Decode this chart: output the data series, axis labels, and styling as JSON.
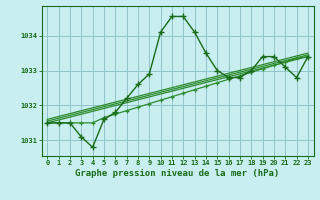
{
  "title": "Graphe pression niveau de la mer (hPa)",
  "background_color": "#c8eef0",
  "grid_color": "#90c4c8",
  "line_color": "#1a6b1a",
  "line_color2": "#2d8b2d",
  "xlim": [
    -0.5,
    23.5
  ],
  "ylim": [
    1030.55,
    1034.85
  ],
  "yticks": [
    1031,
    1032,
    1033,
    1034
  ],
  "xticks": [
    0,
    1,
    2,
    3,
    4,
    5,
    6,
    7,
    8,
    9,
    10,
    11,
    12,
    13,
    14,
    15,
    16,
    17,
    18,
    19,
    20,
    21,
    22,
    23
  ],
  "series1_x": [
    0,
    1,
    2,
    3,
    4,
    5,
    6,
    7,
    8,
    9,
    10,
    11,
    12,
    13,
    14,
    15,
    16,
    17,
    18,
    19,
    20,
    21,
    22,
    23
  ],
  "series1_y": [
    1031.5,
    1031.5,
    1031.5,
    1031.1,
    1030.8,
    1031.6,
    1031.8,
    1032.2,
    1032.6,
    1032.9,
    1034.1,
    1034.55,
    1034.55,
    1034.1,
    1033.5,
    1033.0,
    1032.8,
    1032.8,
    1033.0,
    1033.4,
    1033.4,
    1033.1,
    1032.8,
    1033.4
  ],
  "series2_x": [
    0,
    1,
    3,
    4,
    5,
    6,
    7,
    8,
    9,
    10,
    11,
    12,
    13,
    14,
    15,
    16,
    17,
    18,
    19,
    20,
    21,
    22,
    23
  ],
  "series2_y": [
    1031.5,
    1031.5,
    1031.5,
    1031.5,
    1031.65,
    1031.75,
    1031.85,
    1031.95,
    1032.05,
    1032.15,
    1032.25,
    1032.35,
    1032.45,
    1032.55,
    1032.65,
    1032.75,
    1032.85,
    1032.95,
    1033.05,
    1033.15,
    1033.25,
    1033.35,
    1033.4
  ],
  "series3_x": [
    0,
    23
  ],
  "series3_y": [
    1031.5,
    1033.4
  ],
  "series4_x": [
    0,
    23
  ],
  "series4_y": [
    1031.55,
    1033.45
  ],
  "series5_x": [
    0,
    23
  ],
  "series5_y": [
    1031.6,
    1033.5
  ],
  "title_fontsize": 6.5
}
